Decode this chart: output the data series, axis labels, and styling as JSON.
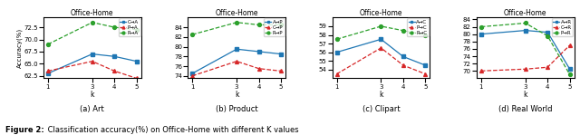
{
  "title": "Office-Home",
  "xlabel": "k",
  "ylabel": "Accuracy(%)",
  "x": [
    1,
    3,
    4,
    5
  ],
  "subplots": [
    {
      "subtitle": "(a) Art",
      "legend": [
        "C→A",
        "P→A",
        "R→A"
      ],
      "blue": [
        63.0,
        67.0,
        66.5,
        65.5
      ],
      "red": [
        63.5,
        65.5,
        63.5,
        62.0
      ],
      "green": [
        69.0,
        73.5,
        72.5,
        72.0
      ],
      "ylim": [
        62.0,
        74.5
      ],
      "yticks": [
        62.5,
        65.0,
        67.5,
        70.0,
        72.5
      ]
    },
    {
      "subtitle": "(b) Product",
      "legend": [
        "A→P",
        "C→P",
        "R→P"
      ],
      "blue": [
        74.5,
        79.5,
        79.0,
        78.5
      ],
      "red": [
        74.0,
        77.0,
        75.5,
        75.0
      ],
      "green": [
        82.5,
        85.0,
        84.5,
        84.5
      ],
      "ylim": [
        73.5,
        86.0
      ],
      "yticks": [
        74,
        76,
        78,
        80,
        82,
        84
      ]
    },
    {
      "subtitle": "(c) Clipart",
      "legend": [
        "A→C",
        "P→C",
        "R→C"
      ],
      "blue": [
        56.0,
        57.5,
        55.5,
        54.5
      ],
      "red": [
        53.5,
        56.5,
        54.5,
        53.5
      ],
      "green": [
        57.5,
        59.0,
        58.5,
        58.0
      ],
      "ylim": [
        53.0,
        60.0
      ],
      "yticks": [
        54,
        55,
        56,
        57,
        58,
        59
      ]
    },
    {
      "subtitle": "(d) Real World",
      "legend": [
        "A→R",
        "C→R",
        "P→R"
      ],
      "blue": [
        80.0,
        81.0,
        80.5,
        70.5
      ],
      "red": [
        70.0,
        70.5,
        71.0,
        77.0
      ],
      "green": [
        82.0,
        83.0,
        79.5,
        69.0
      ],
      "ylim": [
        68.0,
        84.5
      ],
      "yticks": [
        70,
        72,
        74,
        76,
        78,
        80,
        82,
        84
      ]
    }
  ],
  "caption_bold": "Figure 2:",
  "caption_rest": " Classification accuracy(%) on Office-Home with different K values"
}
